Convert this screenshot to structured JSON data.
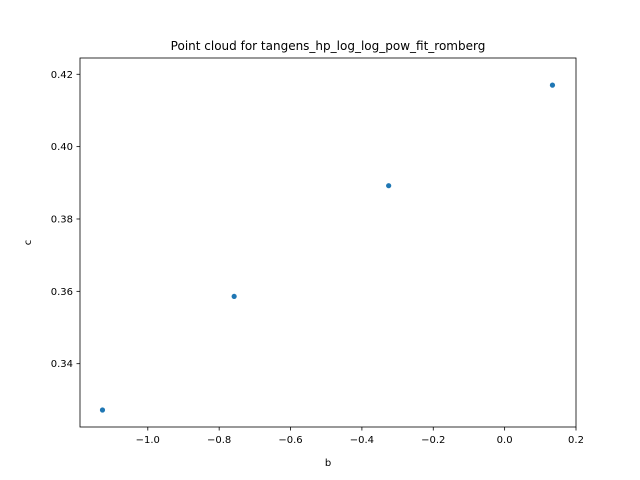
{
  "chart_data": {
    "type": "scatter",
    "title": "Point cloud for tangens_hp_log_log_pow_fit_romberg",
    "xlabel": "b",
    "ylabel": "c",
    "xlim": [
      -1.19,
      0.2
    ],
    "ylim": [
      0.3225,
      0.4245
    ],
    "xticks": [
      -1.0,
      -0.8,
      -0.6,
      -0.4,
      -0.2,
      0.0,
      0.2
    ],
    "xtick_labels": [
      "−1.0",
      "−0.8",
      "−0.6",
      "−0.4",
      "−0.2",
      "0.0",
      "0.2"
    ],
    "yticks": [
      0.34,
      0.36,
      0.38,
      0.4,
      0.42
    ],
    "ytick_labels": [
      "0.34",
      "0.36",
      "0.38",
      "0.40",
      "0.42"
    ],
    "grid": false,
    "marker_color": "#1f77b4",
    "series": [
      {
        "x": [
          -1.127,
          -0.758,
          -0.325,
          0.134
        ],
        "y": [
          0.3272,
          0.3586,
          0.3892,
          0.417
        ]
      }
    ]
  }
}
